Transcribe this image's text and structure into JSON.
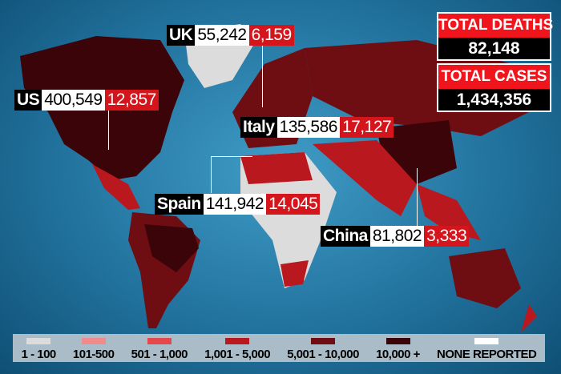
{
  "totals": {
    "deaths_label": "TOTAL DEATHS",
    "deaths": "82,148",
    "cases_label": "TOTAL CASES",
    "cases": "1,434,356"
  },
  "countries": [
    {
      "name": "US",
      "cases": "400,549",
      "deaths": "12,857"
    },
    {
      "name": "UK",
      "cases": "55,242",
      "deaths": "6,159"
    },
    {
      "name": "Italy",
      "cases": "135,586",
      "deaths": "17,127"
    },
    {
      "name": "Spain",
      "cases": "141,942",
      "deaths": "14,045"
    },
    {
      "name": "China",
      "cases": "81,802",
      "deaths": "3,333"
    }
  ],
  "legend": [
    {
      "label": "1 - 100",
      "color": "#dcdcdc"
    },
    {
      "label": "101-500",
      "color": "#f08a8c"
    },
    {
      "label": "501 - 1,000",
      "color": "#e4484c"
    },
    {
      "label": "1,001 - 5,000",
      "color": "#b8181e"
    },
    {
      "label": "5,001 - 10,000",
      "color": "#6e0d12"
    },
    {
      "label": "10,000 +",
      "color": "#3a0409"
    },
    {
      "label": "NONE REPORTED",
      "color": "#ffffff"
    }
  ]
}
